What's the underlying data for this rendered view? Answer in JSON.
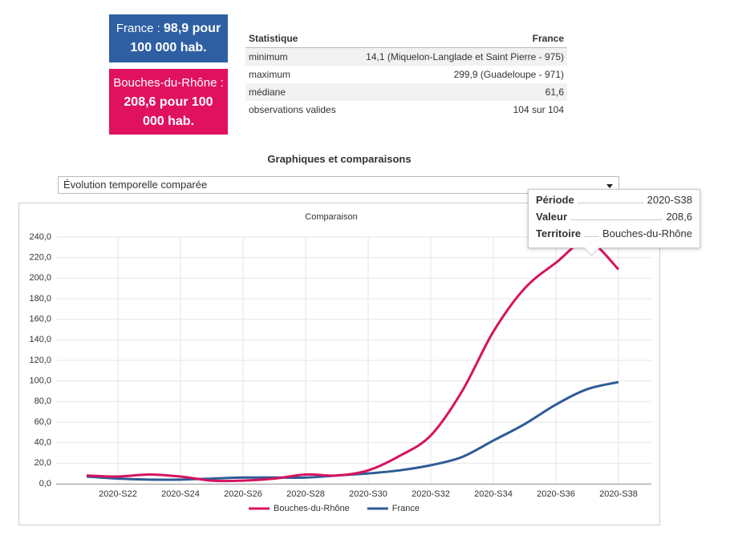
{
  "cards": [
    {
      "label": "France :",
      "value": "98,9 pour 100 000 hab."
    },
    {
      "label": "Bouches-du-Rhône :",
      "value": "208,6 pour 100 000 hab."
    }
  ],
  "stats_table": {
    "header": [
      "Statistique",
      "France"
    ],
    "rows": [
      [
        "minimum",
        "14,1 (Miquelon-Langlade et Saint Pierre - 975)"
      ],
      [
        "maximum",
        "299,9 (Guadeloupe - 971)"
      ],
      [
        "médiane",
        "61,6"
      ],
      [
        "observations valides",
        "104 sur 104"
      ]
    ]
  },
  "section_title": "Graphiques et comparaisons",
  "dropdown": "Évolution temporelle comparée",
  "tooltip": [
    {
      "key": "Période",
      "value": "2020-S38"
    },
    {
      "key": "Valeur",
      "value": "208,6"
    },
    {
      "key": "Territoire",
      "value": "Bouches-du-Rhône"
    }
  ],
  "chart_data": {
    "type": "line",
    "title": "Comparaison",
    "categories": [
      null,
      "2020-S22",
      null,
      "2020-S24",
      null,
      "2020-S26",
      null,
      "2020-S28",
      null,
      "2020-S30",
      null,
      "2020-S32",
      null,
      "2020-S34",
      null,
      "2020-S36",
      null,
      "2020-S38"
    ],
    "series": [
      {
        "name": "Bouches-du-Rhône",
        "color": "#d6135f",
        "values": [
          8,
          7,
          9,
          7,
          3,
          3,
          5,
          9,
          8,
          13,
          27,
          47,
          90,
          148,
          190,
          215,
          236,
          208.6
        ]
      },
      {
        "name": "France",
        "color": "#2d5c96",
        "values": [
          7,
          5,
          4,
          4,
          5,
          6,
          6,
          6,
          8,
          10,
          13,
          18,
          26,
          42,
          58,
          77,
          92,
          98.9
        ]
      }
    ],
    "ylim": [
      0,
      240
    ],
    "yticks": [
      {
        "value": 0,
        "label": "0,0"
      },
      {
        "value": 20,
        "label": "20,0"
      },
      {
        "value": 40,
        "label": "40,0"
      },
      {
        "value": 60,
        "label": "60,0"
      },
      {
        "value": 80,
        "label": "80,0"
      },
      {
        "value": 100,
        "label": "100,0"
      },
      {
        "value": 120,
        "label": "120,0"
      },
      {
        "value": 140,
        "label": "140,0"
      },
      {
        "value": 160,
        "label": "160,0"
      },
      {
        "value": 180,
        "label": "180,0"
      },
      {
        "value": 200,
        "label": "200,0"
      },
      {
        "value": 220,
        "label": "220,0"
      },
      {
        "value": 240,
        "label": "240,0"
      }
    ],
    "grid": true,
    "legend": "bottom"
  }
}
